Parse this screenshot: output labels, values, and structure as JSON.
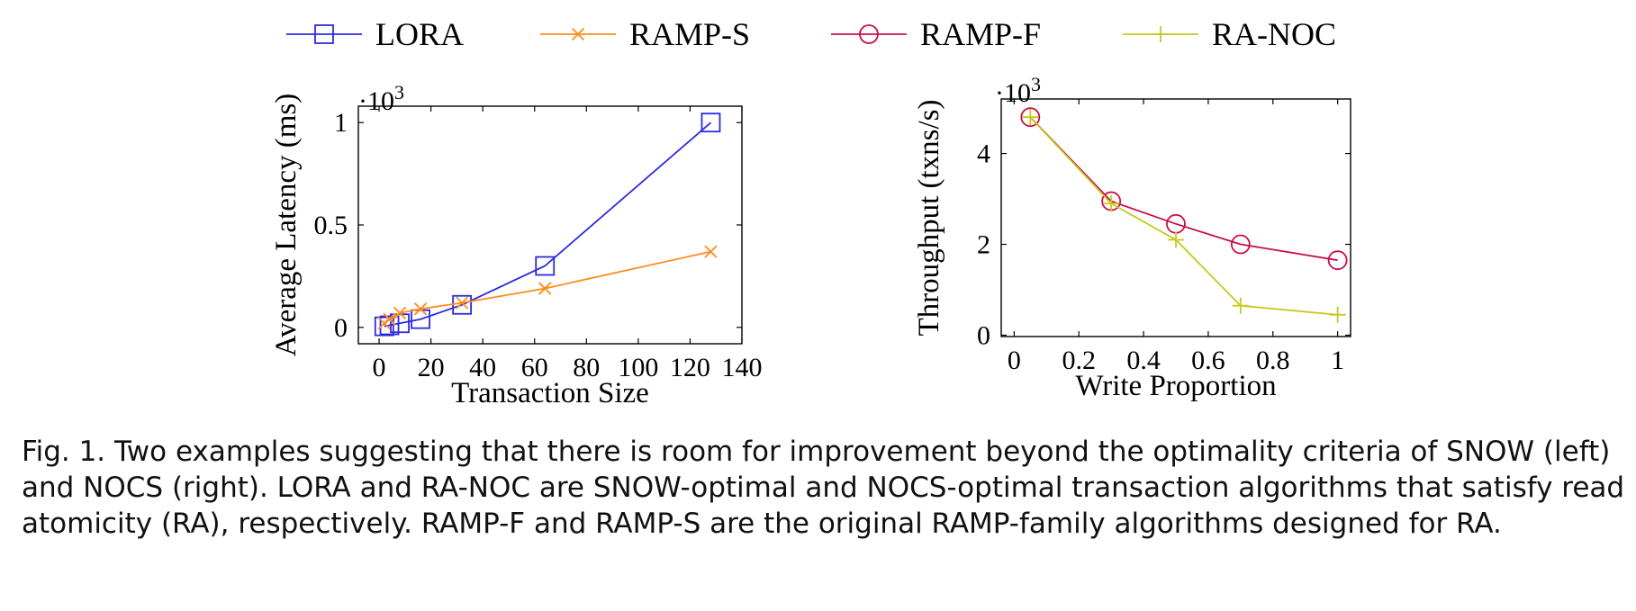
{
  "legend": [
    {
      "name": "LORA",
      "color": "#2b2be0",
      "marker": "square"
    },
    {
      "name": "RAMP-S",
      "color": "#ff8c1a",
      "marker": "x"
    },
    {
      "name": "RAMP-F",
      "color": "#c8104a",
      "marker": "circle"
    },
    {
      "name": "RA-NOC",
      "color": "#c8c81e",
      "marker": "plus"
    }
  ],
  "chart_data": [
    {
      "type": "line",
      "xlabel": "Transaction Size",
      "ylabel": "Average Latency (ms)",
      "y_multiplier": "·10",
      "y_multiplier_exp": "3",
      "xlim": [
        -8,
        140
      ],
      "ylim": [
        -0.08,
        1.08
      ],
      "xticks": [
        0,
        20,
        40,
        60,
        80,
        100,
        120,
        140
      ],
      "xtick_labels": [
        "0",
        "20",
        "40",
        "60",
        "80",
        "100",
        "120",
        "140"
      ],
      "yticks": [
        0,
        0.5,
        1
      ],
      "ytick_labels": [
        "0",
        "0.5",
        "1"
      ],
      "series": [
        {
          "name": "LORA",
          "x": [
            2,
            4,
            8,
            16,
            32,
            64,
            128
          ],
          "y": [
            0.005,
            0.01,
            0.02,
            0.04,
            0.11,
            0.3,
            1.0
          ]
        },
        {
          "name": "RAMP-S",
          "x": [
            2,
            4,
            8,
            16,
            32,
            64,
            128
          ],
          "y": [
            0.02,
            0.04,
            0.07,
            0.09,
            0.12,
            0.19,
            0.37
          ]
        }
      ]
    },
    {
      "type": "line",
      "xlabel": "Write Proportion",
      "ylabel": "Throughput (txns/s)",
      "y_multiplier": "·10",
      "y_multiplier_exp": "3",
      "xlim": [
        -0.04,
        1.04
      ],
      "ylim": [
        -0.03,
        5.2
      ],
      "xticks": [
        0,
        0.2,
        0.4,
        0.6,
        0.8,
        1
      ],
      "xtick_labels": [
        "0",
        "0.2",
        "0.4",
        "0.6",
        "0.8",
        "1"
      ],
      "yticks": [
        0,
        2,
        4
      ],
      "ytick_labels": [
        "0",
        "2",
        "4"
      ],
      "series": [
        {
          "name": "RAMP-F",
          "x": [
            0.05,
            0.3,
            0.5,
            0.7,
            1.0
          ],
          "y": [
            4.8,
            2.95,
            2.45,
            2.0,
            1.65
          ]
        },
        {
          "name": "RA-NOC",
          "x": [
            0.05,
            0.3,
            0.5,
            0.7,
            1.0
          ],
          "y": [
            4.8,
            2.9,
            2.1,
            0.65,
            0.45
          ]
        }
      ]
    }
  ],
  "caption": "Fig. 1.  Two examples suggesting that there is room for improvement beyond the optimality criteria of SNOW (left) and NOCS (right). LORA and RA-NOC are SNOW-optimal and NOCS-optimal transaction algorithms that satisfy read atomicity (RA), respectively. RAMP-F and RAMP-S are the original RAMP-family algorithms designed for RA."
}
